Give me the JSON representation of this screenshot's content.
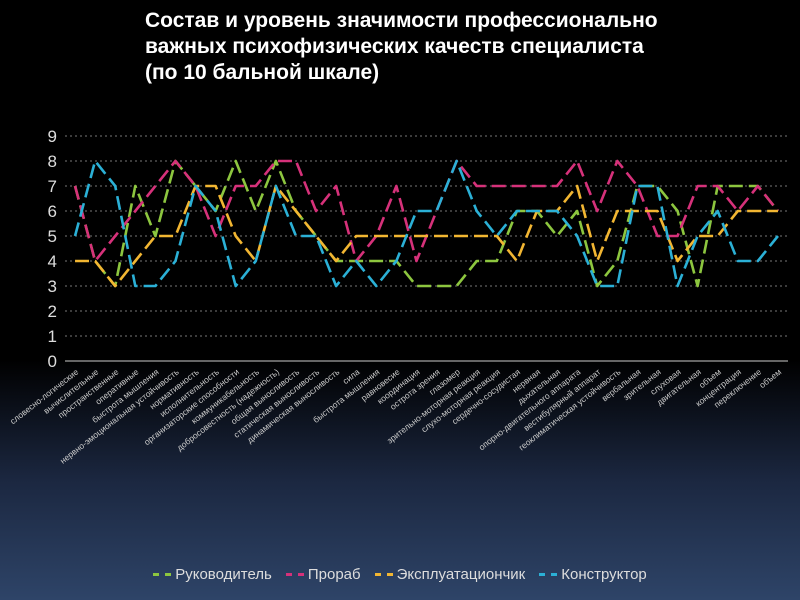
{
  "chart_data": {
    "type": "line",
    "title": [
      "Состав и уровень значимости профессионально",
      "важных психофизических качеств специалиста",
      "(по 10 бальной шкале)"
    ],
    "xlabel": "",
    "ylabel": "",
    "ylim": [
      0,
      9
    ],
    "yticks": [
      "0",
      "1",
      "2",
      "3",
      "4",
      "5",
      "6",
      "7",
      "8",
      "9"
    ],
    "grid": true,
    "legend_position": "bottom",
    "categories": [
      "словесно-логические",
      "вычислительные",
      "пространственные",
      "оперативные",
      "быстрота мышления",
      "нервно-эмоциональная устойчивость",
      "нормативность",
      "исполнительность",
      "организаторские способности",
      "коммуникабельность",
      "добросовестность (надежность)",
      "общая выносливость",
      "статическая выносливость",
      "динамическая выносливость",
      "сила",
      "быстрота мышления",
      "равновесие",
      "координация",
      "острота зрения",
      "глазомер",
      "зрительно-моторная реакция",
      "слухо-моторная реакция",
      "сердечно-сосудистая",
      "нервная",
      "дыхательная",
      "опорно-двигательного аппарата",
      "вестибулярный аппарат",
      "геоклиматическая устойчивость",
      "вербальная",
      "зрительная",
      "слуховая",
      "двигательная",
      "объем",
      "концентрация",
      "переключение",
      "объем"
    ],
    "series": [
      {
        "name": "Руководитель",
        "color": "#8dc63f",
        "values": [
          7,
          4,
          3,
          7,
          5,
          8,
          7,
          6,
          8,
          6,
          8,
          6,
          5,
          4,
          4,
          4,
          4,
          3,
          3,
          3,
          4,
          4,
          6,
          6,
          5,
          6,
          3,
          4,
          7,
          7,
          6,
          3,
          7,
          7,
          7,
          6
        ]
      },
      {
        "name": "Прораб",
        "color": "#d6317a",
        "values": [
          7,
          4,
          5,
          6,
          7,
          8,
          7,
          5,
          7,
          7,
          8,
          8,
          6,
          7,
          4,
          5,
          7,
          4,
          6,
          8,
          7,
          7,
          7,
          7,
          7,
          8,
          6,
          8,
          7,
          5,
          5,
          7,
          7,
          6,
          7,
          6
        ]
      },
      {
        "name": "Эксплуатациончик",
        "color": "#f2b632",
        "values": [
          4,
          4,
          3,
          4,
          5,
          5,
          7,
          7,
          5,
          4,
          7,
          6,
          5,
          4,
          5,
          5,
          5,
          5,
          5,
          5,
          5,
          5,
          4,
          6,
          6,
          7,
          4,
          6,
          6,
          6,
          4,
          5,
          5,
          6,
          6,
          6
        ]
      },
      {
        "name": "Конструктор",
        "color": "#2bb0d6",
        "values": [
          5,
          8,
          7,
          3,
          3,
          4,
          7,
          6,
          3,
          4,
          7,
          5,
          5,
          3,
          4,
          3,
          4,
          6,
          6,
          8,
          6,
          5,
          6,
          6,
          6,
          5,
          3,
          3,
          7,
          7,
          3,
          5,
          6,
          4,
          4,
          5
        ]
      }
    ]
  }
}
